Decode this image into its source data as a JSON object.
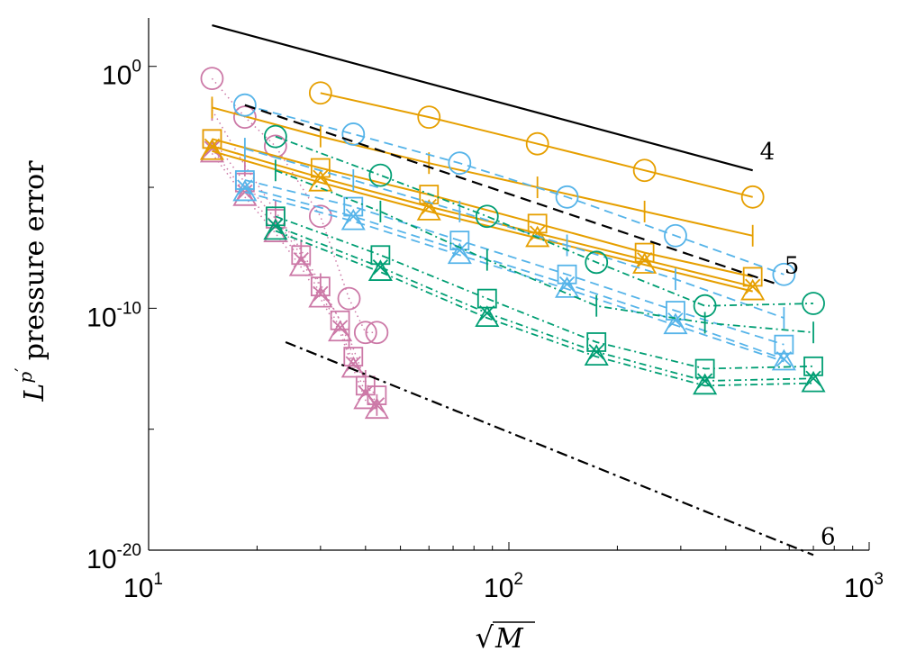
{
  "chart_data": {
    "type": "line",
    "xscale": "log",
    "yscale": "log",
    "xlim_exp": [
      1,
      3
    ],
    "ylim_exp": [
      -20,
      2
    ],
    "xticks": [
      {
        "base": "10",
        "exp": "1",
        "e": 1
      },
      {
        "base": "10",
        "exp": "2",
        "e": 2
      },
      {
        "base": "10",
        "exp": "3",
        "e": 3
      }
    ],
    "yticks": [
      {
        "base": "10",
        "exp": "0",
        "e": 0
      },
      {
        "base": "10",
        "exp": "-10",
        "e": -10
      },
      {
        "base": "10",
        "exp": "-20",
        "e": -20
      }
    ],
    "xlabel": "√M",
    "ylabel": "L^p' pressure error",
    "ylabel_parts": {
      "L": "L",
      "p": "p",
      "prime": "′",
      "rest": "pressure error"
    },
    "xlabel_parts": {
      "radical": "√",
      "M": "M"
    },
    "colors": {
      "pink": "#cc79a7",
      "yellow": "#e69f00",
      "blue": "#56b4e9",
      "green": "#009e73",
      "black": "#000000"
    },
    "reference_lines": [
      {
        "label": "4",
        "x": [
          15,
          475
        ],
        "y_exp": [
          1.7,
          -4.3
        ],
        "style": "solid"
      },
      {
        "label": "5",
        "x": [
          18.5,
          555
        ],
        "y_exp": [
          -1.6,
          -9.0
        ],
        "style": "dashed"
      },
      {
        "label": "6",
        "x": [
          24,
          700
        ],
        "y_exp": [
          -11.4,
          -20.2
        ],
        "style": "dashdot"
      }
    ],
    "series": [
      {
        "name": "pink-circle",
        "color": "pink",
        "marker": "circle",
        "dash": "1.5,4",
        "width": 1.5,
        "x": [
          15,
          18.5,
          22.5,
          30,
          36,
          40,
          43
        ],
        "y_exp": [
          -0.5,
          -2.1,
          -3.3,
          -6.2,
          -9.6,
          -11.0,
          -11.0
        ]
      },
      {
        "name": "pink-bar",
        "color": "pink",
        "marker": "vbar",
        "dash": "1.5,4",
        "width": 1.5,
        "x": [
          15,
          18.5,
          22.5,
          26.5,
          30,
          36,
          40,
          43
        ],
        "y_exp": [
          -1.8,
          -4.1,
          -6.0,
          -7.6,
          -9.0,
          -11.2,
          -13.0,
          -14.0
        ]
      },
      {
        "name": "pink-square",
        "color": "pink",
        "marker": "square",
        "dash": "1.5,4",
        "width": 1.5,
        "x": [
          15,
          18.5,
          22.5,
          26.5,
          30,
          34,
          37,
          40,
          43
        ],
        "y_exp": [
          -3.0,
          -4.8,
          -6.3,
          -7.8,
          -9.1,
          -10.5,
          -12.0,
          -13.2,
          -13.6
        ]
      },
      {
        "name": "pink-x",
        "color": "pink",
        "marker": "x",
        "dash": "1.5,4",
        "width": 1.5,
        "x": [
          15,
          18.5,
          22.5,
          26.5,
          30,
          34,
          37,
          40,
          43
        ],
        "y_exp": [
          -3.4,
          -5.2,
          -6.6,
          -8.0,
          -9.4,
          -10.8,
          -12.3,
          -13.5,
          -14.0
        ]
      },
      {
        "name": "pink-triangle",
        "color": "pink",
        "marker": "triangle",
        "dash": "1.5,4",
        "width": 1.5,
        "x": [
          15,
          18.5,
          22.5,
          26.5,
          30,
          34,
          37,
          40,
          43
        ],
        "y_exp": [
          -3.6,
          -5.4,
          -6.9,
          -8.3,
          -9.6,
          -11.0,
          -12.5,
          -13.8,
          -14.2
        ]
      },
      {
        "name": "yellow-circle",
        "color": "yellow",
        "marker": "circle",
        "dash": "none",
        "width": 2,
        "x": [
          30,
          60,
          120,
          238,
          475
        ],
        "y_exp": [
          -1.1,
          -2.1,
          -3.2,
          -4.3,
          -5.4
        ]
      },
      {
        "name": "yellow-bar",
        "color": "yellow",
        "marker": "vbar",
        "dash": "none",
        "width": 2,
        "x": [
          15,
          30,
          60,
          120,
          238,
          475
        ],
        "y_exp": [
          -1.7,
          -2.9,
          -4.0,
          -5.0,
          -6.0,
          -7.0
        ]
      },
      {
        "name": "yellow-square",
        "color": "yellow",
        "marker": "square",
        "dash": "none",
        "width": 2,
        "x": [
          15,
          30,
          60,
          120,
          238,
          475
        ],
        "y_exp": [
          -3.0,
          -4.2,
          -5.3,
          -6.5,
          -7.7,
          -8.7
        ]
      },
      {
        "name": "yellow-x",
        "color": "yellow",
        "marker": "x",
        "dash": "none",
        "width": 2,
        "x": [
          15,
          30,
          60,
          120,
          238,
          475
        ],
        "y_exp": [
          -3.3,
          -4.6,
          -5.8,
          -6.9,
          -8.0,
          -9.1
        ]
      },
      {
        "name": "yellow-triangle",
        "color": "yellow",
        "marker": "triangle",
        "dash": "none",
        "width": 2,
        "x": [
          15,
          30,
          60,
          120,
          238,
          475
        ],
        "y_exp": [
          -3.5,
          -4.8,
          -6.0,
          -7.1,
          -8.2,
          -9.3
        ]
      },
      {
        "name": "blue-circle",
        "color": "blue",
        "marker": "circle",
        "dash": "10,6",
        "width": 1.8,
        "x": [
          18.5,
          37,
          73,
          145,
          290,
          580
        ],
        "y_exp": [
          -1.6,
          -2.8,
          -4.0,
          -5.4,
          -7.0,
          -8.6
        ]
      },
      {
        "name": "blue-bar",
        "color": "blue",
        "marker": "vbar",
        "dash": "10,6",
        "width": 1.8,
        "x": [
          18.5,
          37,
          73,
          145,
          290,
          580
        ],
        "y_exp": [
          -3.4,
          -4.7,
          -6.0,
          -7.4,
          -8.8,
          -10.4
        ]
      },
      {
        "name": "blue-square",
        "color": "blue",
        "marker": "square",
        "dash": "10,6",
        "width": 1.8,
        "x": [
          18.5,
          37,
          73,
          145,
          290,
          580
        ],
        "y_exp": [
          -4.7,
          -5.8,
          -7.2,
          -8.6,
          -10.1,
          -11.5
        ]
      },
      {
        "name": "blue-x",
        "color": "blue",
        "marker": "x",
        "dash": "10,6",
        "width": 1.8,
        "x": [
          18.5,
          37,
          73,
          145,
          290,
          580
        ],
        "y_exp": [
          -5.0,
          -6.2,
          -7.6,
          -9.0,
          -10.5,
          -12.1
        ]
      },
      {
        "name": "blue-triangle",
        "color": "blue",
        "marker": "triangle",
        "dash": "10,6",
        "width": 1.8,
        "x": [
          18.5,
          37,
          73,
          145,
          290,
          580
        ],
        "y_exp": [
          -5.2,
          -6.4,
          -7.8,
          -9.2,
          -10.7,
          -12.2
        ]
      },
      {
        "name": "green-circle",
        "color": "green",
        "marker": "circle",
        "dash": "8,4,2,4",
        "width": 1.8,
        "x": [
          22.5,
          44,
          87,
          175,
          350,
          700
        ],
        "y_exp": [
          -2.9,
          -4.5,
          -6.2,
          -8.1,
          -9.9,
          -9.8
        ]
      },
      {
        "name": "green-bar",
        "color": "green",
        "marker": "vbar",
        "dash": "8,4,2,4",
        "width": 1.8,
        "x": [
          22.5,
          44,
          87,
          175,
          350,
          700
        ],
        "y_exp": [
          -4.3,
          -6.0,
          -8.0,
          -9.9,
          -10.6,
          -11.0
        ]
      },
      {
        "name": "green-square",
        "color": "green",
        "marker": "square",
        "dash": "8,4,2,4",
        "width": 1.8,
        "x": [
          22.5,
          44,
          87,
          175,
          350,
          700
        ],
        "y_exp": [
          -6.2,
          -7.8,
          -9.6,
          -11.4,
          -12.5,
          -12.4
        ]
      },
      {
        "name": "green-x",
        "color": "green",
        "marker": "x",
        "dash": "8,4,2,4",
        "width": 1.8,
        "x": [
          22.5,
          44,
          87,
          175,
          350,
          700
        ],
        "y_exp": [
          -6.6,
          -8.3,
          -10.2,
          -11.8,
          -13.0,
          -12.9
        ]
      },
      {
        "name": "green-triangle",
        "color": "green",
        "marker": "triangle",
        "dash": "8,4,2,4",
        "width": 1.8,
        "x": [
          22.5,
          44,
          87,
          175,
          350,
          700
        ],
        "y_exp": [
          -6.8,
          -8.5,
          -10.4,
          -12.0,
          -13.2,
          -13.1
        ]
      }
    ]
  }
}
